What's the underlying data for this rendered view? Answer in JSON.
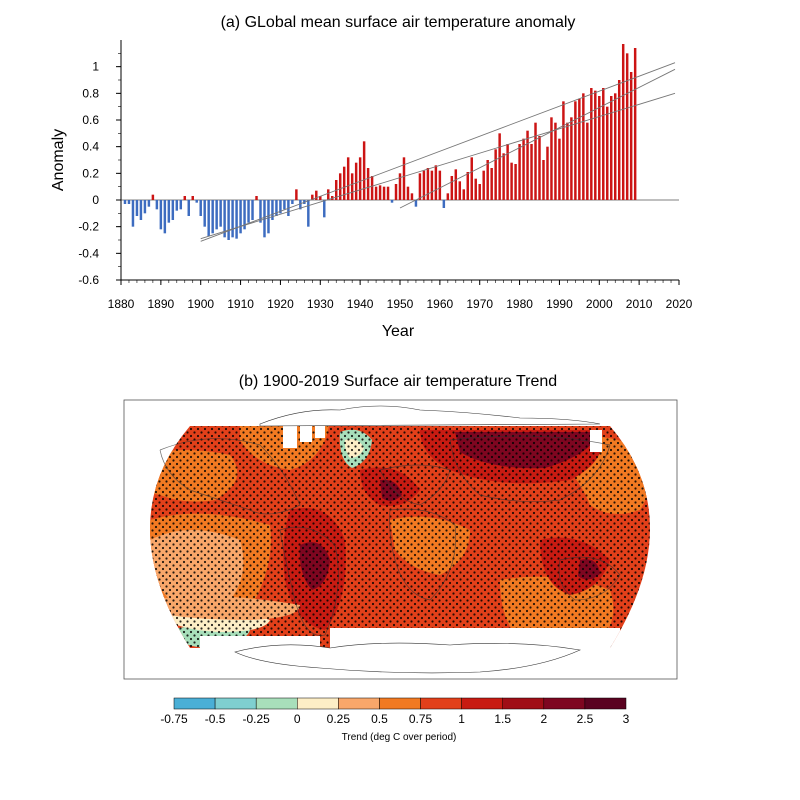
{
  "chart_data": [
    {
      "type": "bar",
      "title": "(a) GLobal mean surface air temperature anomaly",
      "xlabel": "Year",
      "ylabel": "Anomaly",
      "xlim": [
        1880,
        2020
      ],
      "ylim": [
        -0.6,
        1.2
      ],
      "x_ticks": [
        1880,
        1890,
        1900,
        1910,
        1920,
        1930,
        1940,
        1950,
        1960,
        1970,
        1980,
        1990,
        2000,
        2010,
        2020
      ],
      "y_ticks": [
        {
          "v": -0.6,
          "label": "-0.6"
        },
        {
          "v": -0.4,
          "label": "-0.4"
        },
        {
          "v": -0.2,
          "label": "-0.2"
        },
        {
          "v": 0,
          "label": "0"
        },
        {
          "v": 0.2,
          "label": "0.2"
        },
        {
          "v": 0.4,
          "label": "0.4"
        },
        {
          "v": 0.6,
          "label": "0.6"
        },
        {
          "v": 0.8,
          "label": "0.8"
        },
        {
          "v": 1,
          "label": "1"
        }
      ],
      "colors": {
        "positive": "#cc1414",
        "negative": "#3d6cc0",
        "trend": "#777777"
      },
      "years_start": 1881,
      "values": [
        -0.03,
        -0.03,
        -0.2,
        -0.12,
        -0.15,
        -0.1,
        -0.05,
        0.04,
        -0.07,
        -0.22,
        -0.25,
        -0.17,
        -0.15,
        -0.08,
        -0.07,
        0.03,
        -0.12,
        0.03,
        -0.02,
        -0.12,
        -0.2,
        -0.27,
        -0.25,
        -0.22,
        -0.2,
        -0.28,
        -0.3,
        -0.28,
        -0.29,
        -0.25,
        -0.22,
        -0.17,
        -0.15,
        0.03,
        -0.17,
        -0.28,
        -0.25,
        -0.15,
        -0.12,
        -0.1,
        -0.07,
        -0.12,
        -0.03,
        0.08,
        -0.07,
        -0.03,
        -0.2,
        0.04,
        0.07,
        0.03,
        -0.13,
        0.08,
        0.03,
        0.15,
        0.2,
        0.25,
        0.32,
        0.2,
        0.28,
        0.32,
        0.44,
        0.24,
        0.18,
        0.1,
        0.11,
        0.1,
        0.1,
        -0.02,
        0.12,
        0.2,
        0.32,
        0.1,
        0.05,
        -0.05,
        0.2,
        0.22,
        0.24,
        0.22,
        0.26,
        0.22,
        -0.06,
        0.05,
        0.18,
        0.23,
        0.14,
        0.08,
        0.21,
        0.32,
        0.16,
        0.12,
        0.22,
        0.3,
        0.24,
        0.38,
        0.5,
        0.35,
        0.42,
        0.28,
        0.27,
        0.42,
        0.46,
        0.52,
        0.42,
        0.58,
        0.48,
        0.3,
        0.4,
        0.62,
        0.58,
        0.46,
        0.74,
        0.58,
        0.62,
        0.74,
        0.76,
        0.8,
        0.58,
        0.84,
        0.82,
        0.78,
        0.84,
        0.7,
        0.78,
        0.8,
        0.9,
        1.17,
        1.1,
        0.96,
        1.14
      ],
      "trend_lines": [
        {
          "from": [
            1900,
            -0.31
          ],
          "to": [
            2019,
            1.03
          ]
        },
        {
          "from": [
            1900,
            -0.29
          ],
          "to": [
            2019,
            0.8
          ]
        },
        {
          "from": [
            1950,
            -0.06
          ],
          "to": [
            2019,
            0.98
          ]
        }
      ]
    },
    {
      "type": "heatmap",
      "title": "(b) 1900-2019 Surface air temperature Trend",
      "colorbar": {
        "label": "Trend (deg C over period)",
        "tick_labels": [
          "-0.75",
          "-0.5",
          "-0.25",
          "0",
          "0.25",
          "0.5",
          "0.75",
          "1",
          "1.5",
          "2",
          "2.5",
          "3"
        ],
        "colors": [
          "#4aafd6",
          "#7fcfd0",
          "#a8dfbb",
          "#fdeec6",
          "#f9a76a",
          "#f27a22",
          "#e2401a",
          "#c81b12",
          "#a00e16",
          "#7e0620",
          "#5a0220"
        ]
      },
      "regions": [
        {
          "name": "base",
          "color": "#e2401a"
        },
        {
          "name": "moderate-warming",
          "color": "#f27a22"
        },
        {
          "name": "weak-warming",
          "color": "#f9a76a"
        },
        {
          "name": "strong-warming",
          "color": "#c81b12"
        },
        {
          "name": "very-strong-warming",
          "color": "#7e0620"
        },
        {
          "name": "cooling-greenland",
          "color": "#a8dfbb"
        },
        {
          "name": "near-zero",
          "color": "#fdeec6"
        }
      ],
      "significance_hatching": "dots"
    }
  ]
}
